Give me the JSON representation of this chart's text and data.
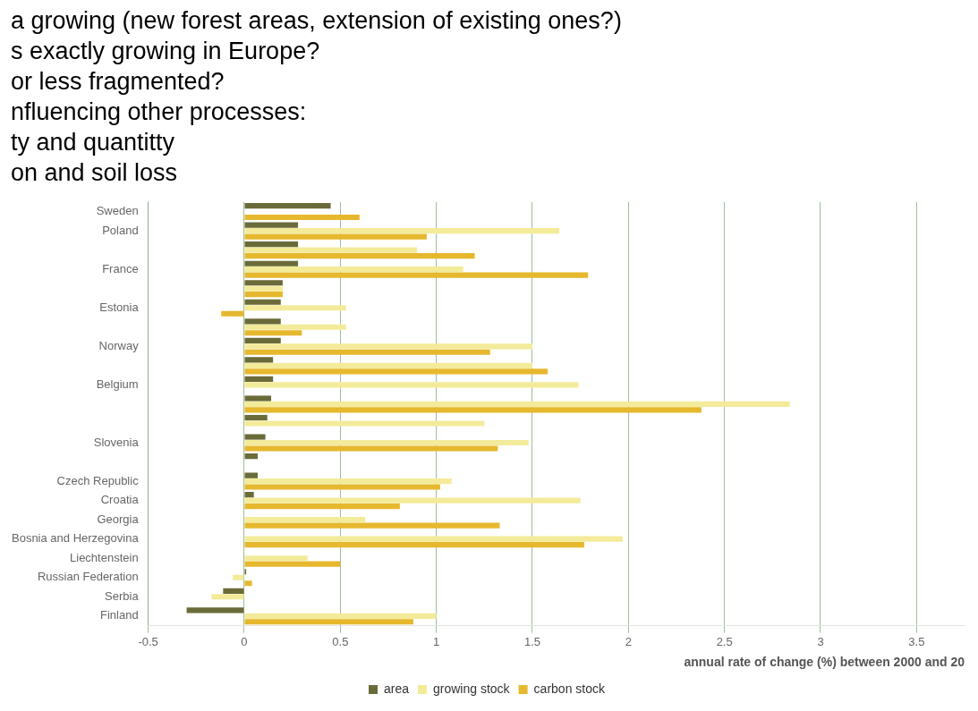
{
  "chart_data": {
    "type": "bar",
    "orientation": "horizontal",
    "xlabel": "annual rate of change (%) between 2000 and 20",
    "annotations": [
      "a growing (new forest areas, extension of existing ones?)",
      "s exactly growing in Europe?",
      "or less fragmented?",
      "nfluencing other processes:",
      "ty and quantitty",
      "on and soil loss"
    ],
    "categories": [
      "Sweden",
      "Poland",
      null,
      "France",
      null,
      "Estonia",
      null,
      "Norway",
      null,
      "Belgium",
      null,
      null,
      "Slovenia",
      null,
      "Czech Republic",
      "Croatia",
      "Georgia",
      "Bosnia and Herzegovina",
      "Liechtenstein",
      "Russian Federation",
      "Serbia",
      "Finland"
    ],
    "series": [
      {
        "name": "area",
        "color": "#6b6b3a",
        "values": [
          0.45,
          0.28,
          0.28,
          0.28,
          0.2,
          0.19,
          0.19,
          0.19,
          0.15,
          0.15,
          0.14,
          0.12,
          0.11,
          0.07,
          0.07,
          0.05,
          0,
          0,
          0,
          0.01,
          -0.11,
          -0.3
        ]
      },
      {
        "name": "growing stock",
        "color": "#f3eb9a",
        "values": [
          null,
          1.64,
          0.9,
          1.14,
          0.2,
          0.53,
          0.53,
          1.5,
          1.5,
          1.74,
          2.84,
          1.25,
          1.48,
          null,
          1.08,
          1.75,
          0.63,
          1.97,
          0.33,
          -0.06,
          -0.17,
          1.0
        ]
      },
      {
        "name": "carbon stock",
        "color": "#e6b82e",
        "values": [
          0.6,
          0.95,
          1.2,
          1.79,
          0.2,
          -0.12,
          0.3,
          1.28,
          1.58,
          null,
          2.38,
          null,
          1.32,
          null,
          1.02,
          0.81,
          1.33,
          1.77,
          0.5,
          0.04,
          null,
          0.88
        ]
      }
    ],
    "xlim": [
      -0.5,
      3.75
    ],
    "xticks": [
      -0.5,
      0,
      0.5,
      1,
      1.5,
      2,
      2.5,
      3,
      3.5
    ],
    "grid": "x",
    "legend": "bottom"
  }
}
